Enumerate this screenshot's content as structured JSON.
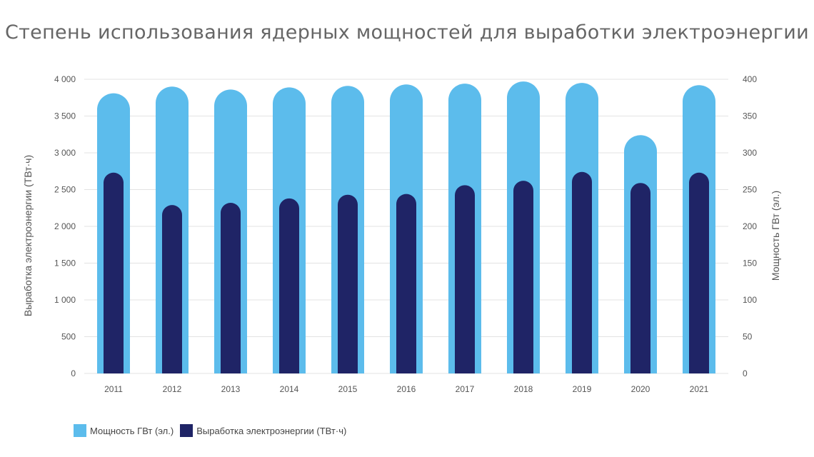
{
  "chart_data": {
    "type": "bar",
    "title": "Степень использования ядерных мощностей для выработки электроэнергии",
    "categories": [
      "2011",
      "2012",
      "2013",
      "2014",
      "2015",
      "2016",
      "2017",
      "2018",
      "2019",
      "2020",
      "2021"
    ],
    "series": [
      {
        "name": "Мощность ГВт (эл.)",
        "axis": "right",
        "color": "#5cbcec",
        "values": [
          381,
          390,
          386,
          389,
          391,
          393,
          394,
          397,
          395,
          324,
          392
        ]
      },
      {
        "name": "Выработка электроэнергии (ТВт·ч)",
        "axis": "left",
        "color": "#1f2466",
        "values": [
          2730,
          2290,
          2320,
          2380,
          2430,
          2440,
          2560,
          2620,
          2740,
          2590,
          2730
        ]
      }
    ],
    "y_left": {
      "label": "Выработка электроэнергии (ТВт·ч)",
      "range": [
        0,
        4000
      ],
      "ticks": [
        0,
        500,
        1000,
        1500,
        2000,
        2500,
        3000,
        3500,
        4000
      ],
      "tick_labels": [
        "0",
        "500",
        "1 000",
        "1 500",
        "2 000",
        "2 500",
        "3 000",
        "3 500",
        "4 000"
      ]
    },
    "y_right": {
      "label": "Мощность ГВт (эл.)",
      "range": [
        0,
        400
      ],
      "ticks": [
        0,
        50,
        100,
        150,
        200,
        250,
        300,
        350,
        400
      ],
      "tick_labels": [
        "0",
        "50",
        "100",
        "150",
        "200",
        "250",
        "300",
        "350",
        "400"
      ]
    },
    "grid": true,
    "legend_position": "bottom-left"
  }
}
